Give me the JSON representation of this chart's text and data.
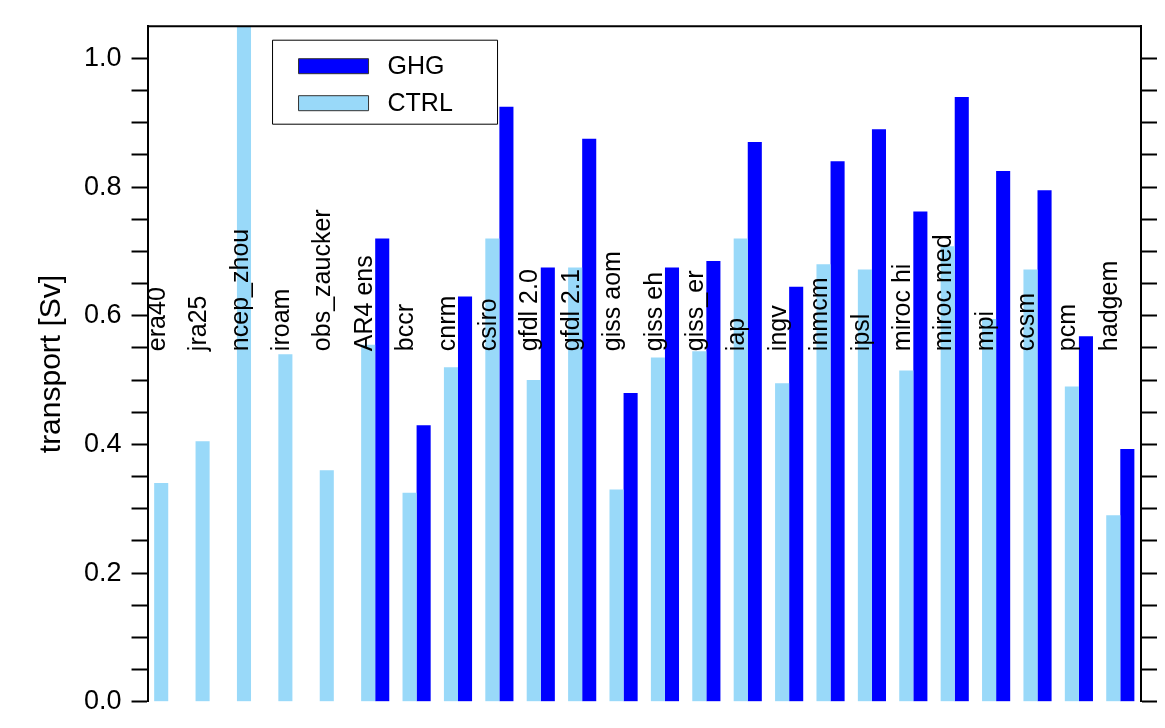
{
  "chart_data": {
    "type": "bar",
    "ylabel": "transport [Sv]",
    "categories": [
      "era40",
      "jra25",
      "ncep_zhou",
      "iroam",
      "obs_zaucker",
      "AR4 ens",
      "bccr",
      "cnrm",
      "csiro",
      "gfdl 2.0",
      "gfdl 2.1",
      "giss aom",
      "giss eh",
      "giss_er",
      "iap",
      "ingv",
      "inmcm",
      "ipsl",
      "miroc hi",
      "miroc med",
      "mpi",
      "ccsm",
      "pcm",
      "hadgem"
    ],
    "series": [
      {
        "name": "CTRL",
        "color": "#99d9f9",
        "values": [
          0.34,
          0.405,
          1.05,
          0.54,
          0.36,
          0.555,
          0.325,
          0.52,
          0.72,
          0.5,
          0.675,
          0.33,
          0.535,
          0.545,
          0.72,
          0.495,
          0.68,
          0.672,
          0.515,
          0.708,
          0.595,
          0.672,
          0.49,
          0.29
        ]
      },
      {
        "name": "GHG",
        "color": "#0000ff",
        "values": [
          null,
          null,
          null,
          null,
          null,
          0.72,
          0.43,
          0.63,
          0.925,
          0.675,
          0.875,
          0.48,
          0.675,
          0.685,
          0.87,
          0.645,
          0.84,
          0.89,
          0.762,
          0.94,
          0.825,
          0.795,
          0.568,
          0.393
        ]
      }
    ],
    "ylim": [
      0,
      1.05
    ],
    "yticks": [
      {
        "value": 0,
        "label": "0.0"
      },
      {
        "value": 0.05,
        "label": null
      },
      {
        "value": 0.1,
        "label": null
      },
      {
        "value": 0.15,
        "label": null
      },
      {
        "value": 0.2,
        "label": "0.2"
      },
      {
        "value": 0.25,
        "label": null
      },
      {
        "value": 0.3,
        "label": null
      },
      {
        "value": 0.35,
        "label": null
      },
      {
        "value": 0.4,
        "label": "0.4"
      },
      {
        "value": 0.45,
        "label": null
      },
      {
        "value": 0.5,
        "label": null
      },
      {
        "value": 0.55,
        "label": null
      },
      {
        "value": 0.6,
        "label": "0.6"
      },
      {
        "value": 0.65,
        "label": null
      },
      {
        "value": 0.7,
        "label": null
      },
      {
        "value": 0.75,
        "label": null
      },
      {
        "value": 0.8,
        "label": "0.8"
      },
      {
        "value": 0.85,
        "label": null
      },
      {
        "value": 0.9,
        "label": null
      },
      {
        "value": 0.95,
        "label": null
      },
      {
        "value": 1,
        "label": "1.0"
      }
    ],
    "legend": "top left",
    "grid": false,
    "tick_labels": "y"
  }
}
